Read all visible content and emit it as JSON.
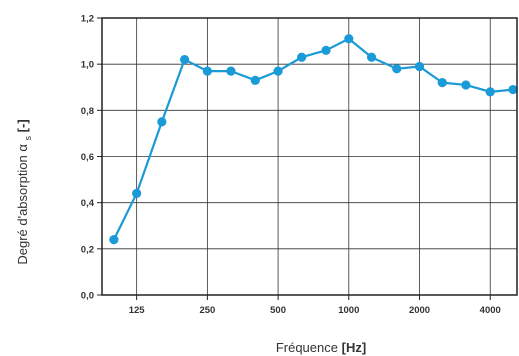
{
  "chart_data": {
    "type": "line",
    "xlabel": "Fréquence",
    "xlabel_unit": "[Hz]",
    "ylabel": "Degré d'absorption α",
    "ylabel_subscript": "s",
    "ylabel_unit": "[-]",
    "x_scale": "log",
    "x_tick_labels": [
      "125",
      "250",
      "500",
      "1000",
      "2000",
      "4000"
    ],
    "x_tick_values": [
      125,
      250,
      500,
      1000,
      2000,
      4000
    ],
    "xlim": [
      89,
      4500
    ],
    "y_tick_labels": [
      "0,0",
      "0,2",
      "0,4",
      "0,6",
      "0,8",
      "1,0",
      "1,2"
    ],
    "y_tick_values": [
      0,
      0.2,
      0.4,
      0.6,
      0.8,
      1.0,
      1.2
    ],
    "ylim": [
      0,
      1.2
    ],
    "grid": true,
    "series": [
      {
        "color": "#1a9ad6",
        "x": [
          100,
          125,
          160,
          200,
          250,
          315,
          400,
          500,
          630,
          800,
          1000,
          1250,
          1600,
          2000,
          2500,
          3150,
          4000,
          5000
        ],
        "y": [
          0.24,
          0.44,
          0.75,
          1.02,
          0.97,
          0.97,
          0.93,
          0.97,
          1.03,
          1.06,
          1.11,
          1.03,
          0.98,
          0.99,
          0.92,
          0.91,
          0.88,
          0.89
        ]
      }
    ]
  }
}
